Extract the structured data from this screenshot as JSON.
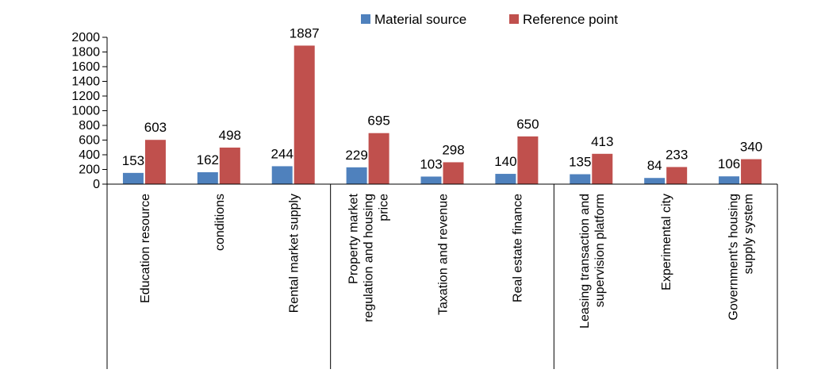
{
  "chart_data": {
    "type": "bar",
    "categories": [
      "Education resource",
      "conditions",
      "Rental market supply",
      "Property market regulation and housing price",
      "Taxation and revenue",
      "Real estate finance",
      "Leasing transaction and supervision platform",
      "Experimental city",
      "Government's housing supply system"
    ],
    "category_lines": [
      [
        "Education resource"
      ],
      [
        "conditions"
      ],
      [
        "Rental market supply"
      ],
      [
        "Property market",
        "regulation and housing",
        "price"
      ],
      [
        "Taxation and revenue"
      ],
      [
        "Real estate finance"
      ],
      [
        "Leasing transaction and",
        "supervision platform"
      ],
      [
        "Experimental city"
      ],
      [
        "Government's housing",
        "supply system"
      ]
    ],
    "series": [
      {
        "name": "Material source",
        "color": "#4F81BD",
        "values": [
          153,
          162,
          244,
          229,
          103,
          140,
          135,
          84,
          106
        ]
      },
      {
        "name": "Reference point",
        "color": "#C0504D",
        "values": [
          603,
          498,
          1887,
          695,
          298,
          650,
          413,
          233,
          340
        ]
      }
    ],
    "ylim": [
      0,
      2000
    ],
    "yticks": [
      "0",
      "200",
      "400",
      "600",
      "800",
      "1000",
      "1200",
      "1400",
      "1600",
      "1800",
      "2000"
    ],
    "legend_position": "top",
    "grid": false,
    "group_separators_after": [
      2,
      5
    ]
  }
}
